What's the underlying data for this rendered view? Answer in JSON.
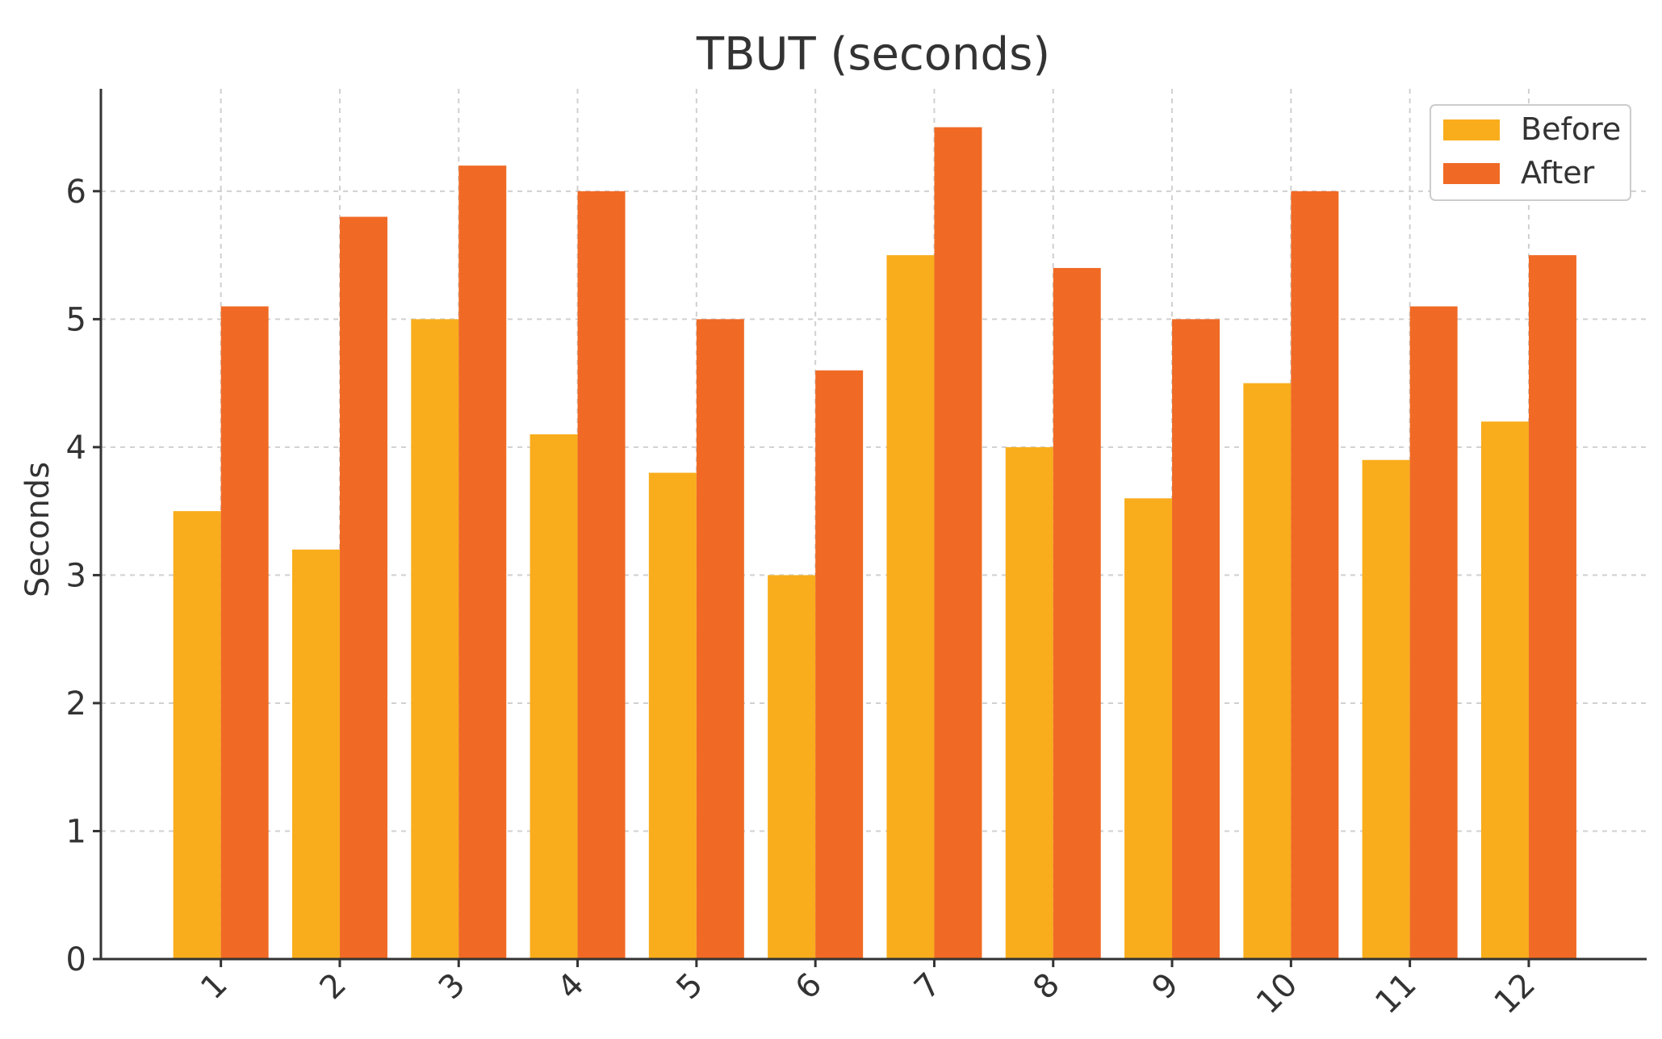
{
  "chart_data": {
    "type": "bar",
    "title": "TBUT (seconds)",
    "xlabel": "",
    "ylabel": "Seconds",
    "categories": [
      "1",
      "2",
      "3",
      "4",
      "5",
      "6",
      "7",
      "8",
      "9",
      "10",
      "11",
      "12"
    ],
    "series": [
      {
        "name": "Before",
        "color": "#F9AD1C",
        "values": [
          3.5,
          3.2,
          5.0,
          4.1,
          3.8,
          3.0,
          5.5,
          4.0,
          3.6,
          4.5,
          3.9,
          4.2
        ]
      },
      {
        "name": "After",
        "color": "#F06A25",
        "values": [
          5.1,
          5.8,
          6.2,
          6.0,
          5.0,
          4.6,
          6.5,
          5.4,
          5.0,
          6.0,
          5.1,
          5.5
        ]
      }
    ],
    "ylim": [
      0,
      6.8
    ],
    "yticks": [
      "0",
      "1",
      "2",
      "3",
      "4",
      "5",
      "6"
    ],
    "grid": true,
    "legend_position": "top-right"
  }
}
